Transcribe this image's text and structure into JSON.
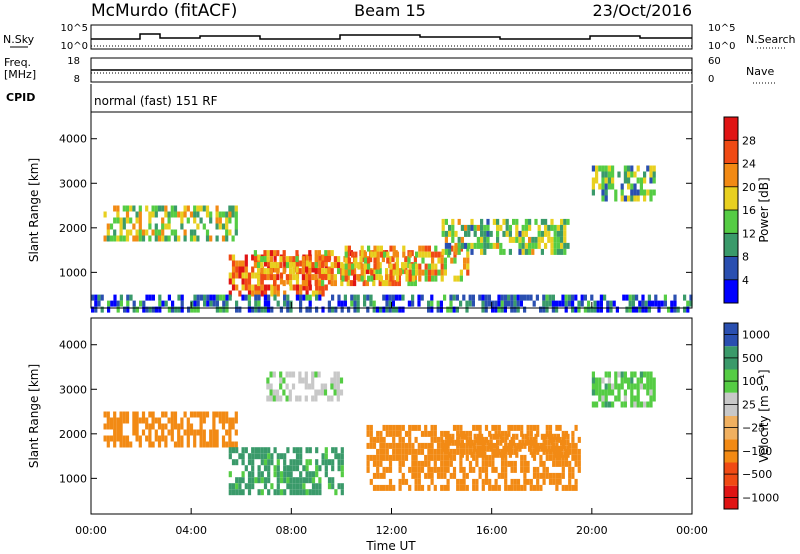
{
  "header": {
    "station": "McMurdo (fitACF)",
    "beam": "Beam 15",
    "date": "23/Oct/2016"
  },
  "top_panels": {
    "nsky_label": "N.Sky",
    "nsearch_label": "N.Search",
    "nsky_ticks": [
      "10^5",
      "10^0"
    ],
    "nsearch_ticks": [
      "10^5",
      "10^0"
    ],
    "freq_label": "Freq.",
    "freq_unit": "[MHz]",
    "freq_ticks": [
      "18",
      "8"
    ],
    "nave_label": "Nave",
    "nave_ticks": [
      "60",
      "0"
    ],
    "cpid_label": "CPID",
    "cpid_value": "normal (fast) 151 RF"
  },
  "colors": {
    "power": [
      "#0000ff",
      "#2a4fb0",
      "#3a9a6a",
      "#55cc44",
      "#e8d020",
      "#f28a14",
      "#f04a14",
      "#e01414"
    ],
    "velocity": [
      "#e01414",
      "#f04a14",
      "#f28a14",
      "#f0b060",
      "#c8c8c8",
      "#55cc44",
      "#3a9a6a",
      "#2a4fb0"
    ]
  },
  "chart_data": [
    {
      "type": "heatmap",
      "name": "power",
      "ylabel": "Slant Range [km]",
      "yticks": [
        "1000",
        "2000",
        "3000",
        "4000"
      ],
      "ylim": [
        200,
        4600
      ],
      "xlim": [
        0,
        24
      ],
      "colorbar": {
        "label": "Power [dB]",
        "range": [
          0,
          32
        ],
        "ticks": [
          "4",
          "8",
          "12",
          "16",
          "20",
          "24",
          "28"
        ]
      },
      "echo_regions": [
        {
          "t": [
            0.5,
            5.8
          ],
          "r": [
            1800,
            2500
          ],
          "value": 16
        },
        {
          "t": [
            5.5,
            9.5
          ],
          "r": [
            500,
            1400
          ],
          "value": 24
        },
        {
          "t": [
            6.5,
            13
          ],
          "r": [
            800,
            1500
          ],
          "value": 22
        },
        {
          "t": [
            10,
            15
          ],
          "r": [
            900,
            1600
          ],
          "value": 20
        },
        {
          "t": [
            14,
            19
          ],
          "r": [
            1500,
            2200
          ],
          "value": 14
        },
        {
          "t": [
            20,
            22.5
          ],
          "r": [
            2600,
            3400
          ],
          "value": 12
        },
        {
          "t": [
            0,
            24
          ],
          "r": [
            200,
            500
          ],
          "value": 6
        }
      ]
    },
    {
      "type": "heatmap",
      "name": "velocity",
      "ylabel": "Slant Range [km]",
      "xlabel": "Time UT",
      "yticks": [
        "1000",
        "2000",
        "3000",
        "4000"
      ],
      "ylim": [
        200,
        4600
      ],
      "xlim": [
        0,
        24
      ],
      "xticks": [
        "00:00",
        "04:00",
        "08:00",
        "12:00",
        "16:00",
        "20:00",
        "00:00"
      ],
      "colorbar": {
        "label": "Velocity [m s⁻¹]",
        "ticks": [
          "1000",
          "500",
          "100",
          "25",
          "−25",
          "−100",
          "−500",
          "−1000"
        ]
      },
      "echo_regions": [
        {
          "t": [
            0.5,
            5.8
          ],
          "r": [
            1700,
            2500
          ],
          "value": -200
        },
        {
          "t": [
            5.5,
            10
          ],
          "r": [
            700,
            1700
          ],
          "value": 150
        },
        {
          "t": [
            11,
            19.5
          ],
          "r": [
            800,
            2200
          ],
          "value": -200
        },
        {
          "t": [
            14,
            19
          ],
          "r": [
            1500,
            2000
          ],
          "value": -150
        },
        {
          "t": [
            20,
            22.5
          ],
          "r": [
            2600,
            3400
          ],
          "value": 60
        },
        {
          "t": [
            7,
            10
          ],
          "r": [
            2800,
            3400
          ],
          "value": 10
        }
      ]
    }
  ]
}
